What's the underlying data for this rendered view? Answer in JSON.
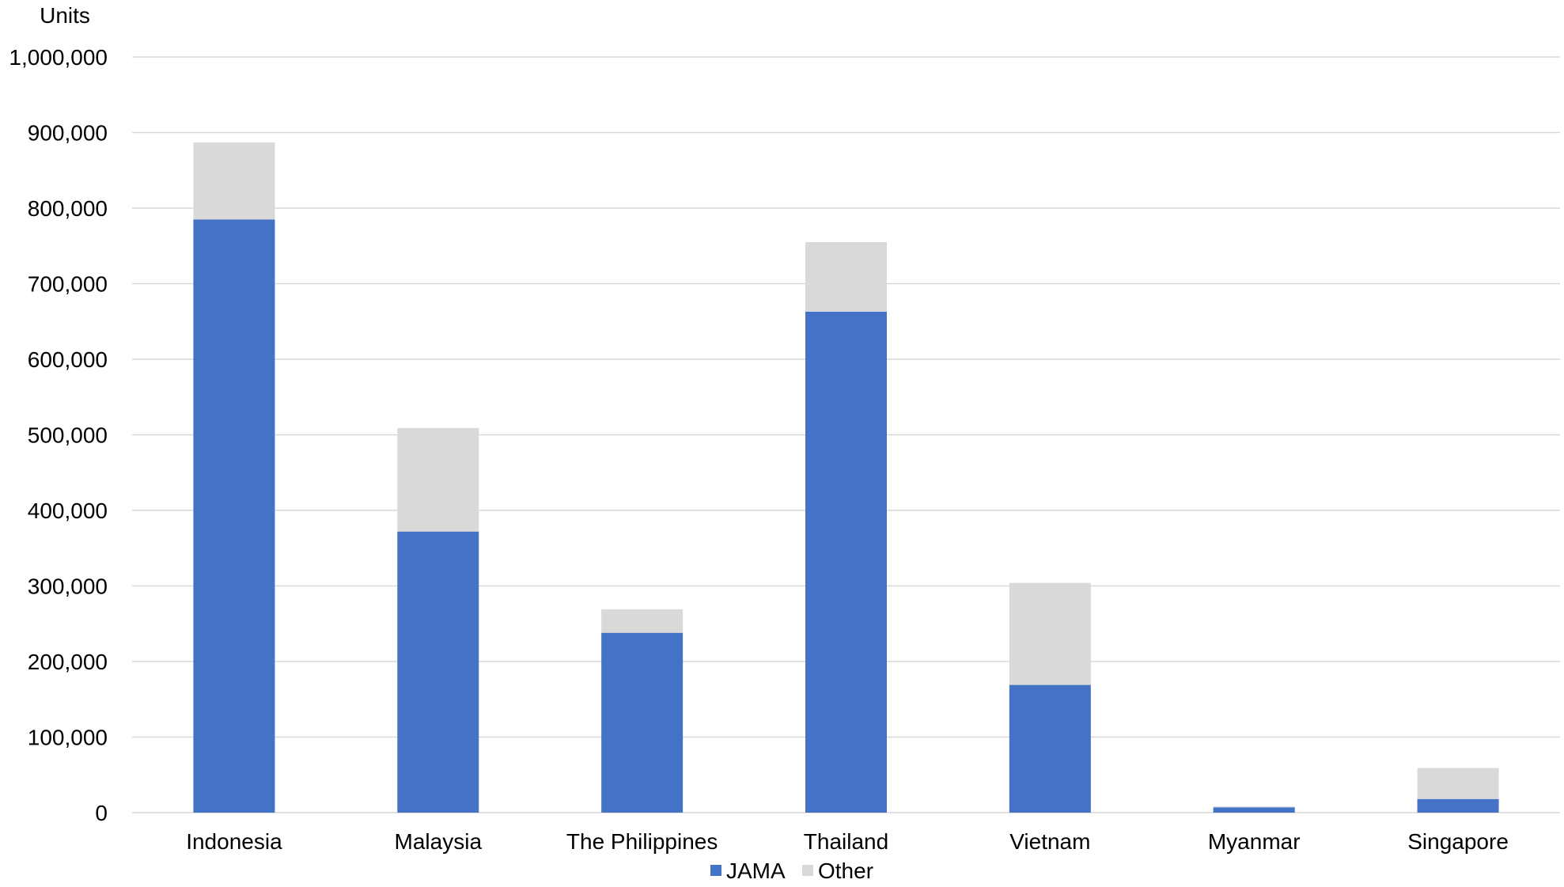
{
  "chart_data": {
    "type": "bar",
    "stacked": true,
    "unit_label": "Units",
    "categories": [
      "Indonesia",
      "Malaysia",
      "The Philippines",
      "Thailand",
      "Vietnam",
      "Myanmar",
      "Singapore"
    ],
    "series": [
      {
        "name": "JAMA",
        "color": "#4472c4",
        "values": [
          785000,
          372000,
          238000,
          663000,
          169000,
          7000,
          18000
        ]
      },
      {
        "name": "Other",
        "color": "#d9d9d9",
        "values": [
          102000,
          137000,
          31000,
          92000,
          135000,
          1000,
          41000
        ]
      }
    ],
    "ylim": [
      0,
      1000000
    ],
    "yticks": [
      0,
      100000,
      200000,
      300000,
      400000,
      500000,
      600000,
      700000,
      800000,
      900000,
      1000000
    ],
    "ytick_labels": [
      "0",
      "100,000",
      "200,000",
      "300,000",
      "400,000",
      "500,000",
      "600,000",
      "700,000",
      "800,000",
      "900,000",
      "1,000,000"
    ],
    "grid": true,
    "legend_position": "bottom"
  }
}
